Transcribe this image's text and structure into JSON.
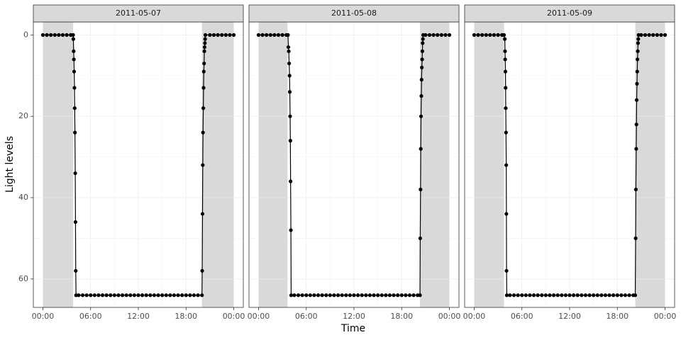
{
  "axes": {
    "x_label": "Time",
    "y_label": "Light levels",
    "xlim": [
      -1.2,
      25.2
    ],
    "ylim": [
      -3.2,
      67
    ],
    "y_reversed": true,
    "xticks": [
      {
        "value": 0,
        "label": "00:00"
      },
      {
        "value": 6,
        "label": "06:00"
      },
      {
        "value": 12,
        "label": "12:00"
      },
      {
        "value": 18,
        "label": "18:00"
      },
      {
        "value": 24,
        "label": "00:00"
      }
    ],
    "xminor": [
      3,
      9,
      15,
      21
    ],
    "yticks": [
      0,
      20,
      40,
      60
    ],
    "yminor": [
      10,
      30,
      50
    ],
    "grid": true,
    "line_color": "#000000",
    "shade_color": "#d9d9d9"
  },
  "chart_data": [
    {
      "type": "line",
      "title": "2011-05-07",
      "shading": [
        [
          0,
          3.8
        ],
        [
          20,
          24
        ]
      ],
      "x": [
        0,
        0.5,
        1,
        1.5,
        2,
        2.5,
        3,
        3.5,
        3.8,
        3.83,
        3.87,
        3.9,
        3.93,
        3.97,
        4,
        4.03,
        4.07,
        4.1,
        4.13,
        4.17,
        4.5,
        5,
        5.5,
        6,
        6.5,
        7,
        7.5,
        8,
        8.5,
        9,
        9.5,
        10,
        10.5,
        11,
        11.5,
        12,
        12.5,
        13,
        13.5,
        14,
        14.5,
        15,
        15.5,
        16,
        16.5,
        17,
        17.5,
        18,
        18.5,
        19,
        19.5,
        20,
        20.03,
        20.07,
        20.1,
        20.13,
        20.17,
        20.2,
        20.23,
        20.27,
        20.3,
        20.33,
        20.37,
        20.4,
        20.43,
        21,
        21.5,
        22,
        22.5,
        23,
        23.5,
        24
      ],
      "values": [
        0,
        0,
        0,
        0,
        0,
        0,
        0,
        0,
        0,
        1,
        4,
        6,
        9,
        13,
        18,
        24,
        34,
        46,
        58,
        64,
        64,
        64,
        64,
        64,
        64,
        64,
        64,
        64,
        64,
        64,
        64,
        64,
        64,
        64,
        64,
        64,
        64,
        64,
        64,
        64,
        64,
        64,
        64,
        64,
        64,
        64,
        64,
        64,
        64,
        64,
        64,
        64,
        58,
        44,
        32,
        24,
        18,
        13,
        9,
        7,
        4,
        3,
        2,
        1,
        0,
        0,
        0,
        0,
        0,
        0,
        0,
        0
      ]
    },
    {
      "type": "line",
      "title": "2011-05-08",
      "shading": [
        [
          0,
          3.65
        ],
        [
          20.3,
          24
        ]
      ],
      "x": [
        0,
        0.5,
        1,
        1.5,
        2,
        2.5,
        3,
        3.5,
        3.7,
        3.75,
        3.8,
        3.85,
        3.9,
        3.93,
        3.97,
        4,
        4.03,
        4.07,
        4.1,
        4.5,
        5,
        5.5,
        6,
        6.5,
        7,
        7.5,
        8,
        8.5,
        9,
        9.5,
        10,
        10.5,
        11,
        11.5,
        12,
        12.5,
        13,
        13.5,
        14,
        14.5,
        15,
        15.5,
        16,
        16.5,
        17,
        17.5,
        18,
        18.5,
        19,
        19.5,
        20,
        20.3,
        20.33,
        20.37,
        20.4,
        20.43,
        20.47,
        20.5,
        20.53,
        20.57,
        20.6,
        20.63,
        20.67,
        20.7,
        21,
        21.5,
        22,
        22.5,
        23,
        23.5,
        24
      ],
      "values": [
        0,
        0,
        0,
        0,
        0,
        0,
        0,
        0,
        0,
        3,
        4,
        7,
        10,
        14,
        20,
        26,
        36,
        48,
        64,
        64,
        64,
        64,
        64,
        64,
        64,
        64,
        64,
        64,
        64,
        64,
        64,
        64,
        64,
        64,
        64,
        64,
        64,
        64,
        64,
        64,
        64,
        64,
        64,
        64,
        64,
        64,
        64,
        64,
        64,
        64,
        64,
        64,
        50,
        38,
        28,
        20,
        15,
        11,
        8,
        6,
        4,
        2,
        1,
        0,
        0,
        0,
        0,
        0,
        0,
        0,
        0
      ]
    },
    {
      "type": "line",
      "title": "2011-05-09",
      "shading": [
        [
          0,
          3.75
        ],
        [
          20.25,
          24
        ]
      ],
      "x": [
        0,
        0.5,
        1,
        1.5,
        2,
        2.5,
        3,
        3.5,
        3.75,
        3.85,
        3.88,
        3.9,
        3.93,
        3.95,
        3.97,
        4,
        4.03,
        4.05,
        4.07,
        4.1,
        4.5,
        5,
        5.5,
        6,
        6.5,
        7,
        7.5,
        8,
        8.5,
        9,
        9.5,
        10,
        10.5,
        11,
        11.5,
        12,
        12.5,
        13,
        13.5,
        14,
        14.5,
        15,
        15.5,
        16,
        16.5,
        17,
        17.5,
        18,
        18.5,
        19,
        19.5,
        20,
        20.25,
        20.3,
        20.33,
        20.37,
        20.4,
        20.43,
        20.47,
        20.5,
        20.53,
        20.57,
        20.6,
        20.63,
        20.67,
        21,
        21.5,
        22,
        22.5,
        23,
        23.5,
        24
      ],
      "values": [
        0,
        0,
        0,
        0,
        0,
        0,
        0,
        0,
        0,
        1,
        4,
        6,
        9,
        13,
        18,
        24,
        32,
        44,
        58,
        64,
        64,
        64,
        64,
        64,
        64,
        64,
        64,
        64,
        64,
        64,
        64,
        64,
        64,
        64,
        64,
        64,
        64,
        64,
        64,
        64,
        64,
        64,
        64,
        64,
        64,
        64,
        64,
        64,
        64,
        64,
        64,
        64,
        64,
        50,
        38,
        28,
        22,
        16,
        12,
        9,
        6,
        4,
        2,
        1,
        0,
        0,
        0,
        0,
        0,
        0,
        0,
        0
      ]
    }
  ]
}
